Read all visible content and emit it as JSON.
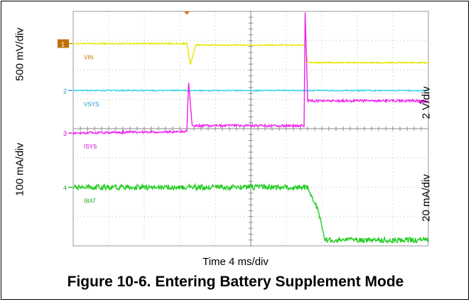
{
  "chart_data": {
    "type": "line",
    "title": "Figure 10-6. Entering Battery Supplement Mode",
    "xlabel": "Time 4 ms/div",
    "x_divisions": 10,
    "y_divisions": 8,
    "scale_labels": {
      "left_top": "500 mV/div",
      "left_bottom": "100 mA/div",
      "right_top": "2 V/div",
      "right_bottom": "20 mA/div"
    },
    "series": [
      {
        "name": "VIN",
        "channel": "1",
        "color": "#e6e600",
        "x": [
          0,
          3.2,
          3.3,
          3.45,
          6.5,
          6.55,
          6.6,
          10
        ],
        "y": [
          6.9,
          6.9,
          6.2,
          6.85,
          6.85,
          6.75,
          6.25,
          6.25
        ]
      },
      {
        "name": "VSYS",
        "channel": "2",
        "color": "#33d6e6",
        "x": [
          0,
          10
        ],
        "y": [
          5.3,
          5.3
        ]
      },
      {
        "name": "ISYS",
        "channel": "3",
        "color": "#ee22ee",
        "x": [
          0,
          3.2,
          3.25,
          3.35,
          3.45,
          6.5,
          6.53,
          6.6,
          10
        ],
        "y": [
          3.85,
          3.9,
          5.6,
          4.1,
          4.1,
          4.1,
          8.0,
          4.95,
          4.95
        ]
      },
      {
        "name": "IBAT",
        "channel": "4",
        "color": "#22cc22",
        "x": [
          0,
          6.6,
          6.9,
          7.1,
          10
        ],
        "y": [
          2.0,
          2.0,
          1.2,
          0.2,
          0.2
        ]
      }
    ],
    "channel_marker_colors": {
      "1": "#c07000",
      "2": "#1a8ccc",
      "3": "#d400d4",
      "4": "#22aa22"
    }
  }
}
